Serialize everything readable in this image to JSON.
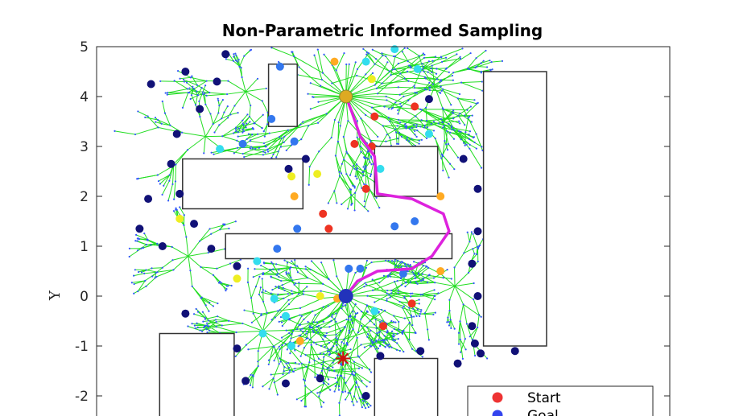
{
  "chart_data": {
    "type": "scatter",
    "title": "Non-Parametric Informed Sampling",
    "xlabel": "",
    "ylabel": "Y",
    "ylim": [
      -2.4,
      5
    ],
    "xlim": [
      0,
      10
    ],
    "yticks": [
      "5",
      "4",
      "3",
      "2",
      "1",
      "0",
      "-1",
      "-2"
    ],
    "yticks_values": [
      5,
      4,
      3,
      2,
      1,
      0,
      -1,
      -2
    ],
    "grid": false,
    "legend_position": "bottom-right",
    "legend": [
      {
        "label": "Start",
        "color": "#ee3333"
      },
      {
        "label": "Goal",
        "color": "#3344ee"
      }
    ],
    "colors": {
      "tree": "#22dd22",
      "tree_nodes": "#3355ff",
      "path": "#dd22dd",
      "obstacle_edge": "#333333",
      "samples_navy": "#111177",
      "samples_red": "#ee3322",
      "samples_orange": "#ffaa22",
      "samples_cyan": "#33ddee",
      "samples_blue": "#3377ee",
      "samples_yellow": "#eeee22",
      "star": "#cc1111"
    },
    "obstacles": [
      {
        "x": [
          3.0,
          3.5
        ],
        "y": [
          3.4,
          4.65
        ]
      },
      {
        "x": [
          1.5,
          3.6
        ],
        "y": [
          1.75,
          2.75
        ]
      },
      {
        "x": [
          2.25,
          6.2
        ],
        "y": [
          0.75,
          1.25
        ]
      },
      {
        "x": [
          4.85,
          5.95
        ],
        "y": [
          2.0,
          3.0
        ]
      },
      {
        "x": [
          6.75,
          7.85
        ],
        "y": [
          -1.0,
          4.5
        ]
      },
      {
        "x": [
          1.1,
          2.4
        ],
        "y": [
          -2.5,
          -0.75
        ]
      },
      {
        "x": [
          4.85,
          5.95
        ],
        "y": [
          -2.5,
          -1.25
        ]
      }
    ],
    "start": {
      "x": 4.35,
      "y": 0.0
    },
    "goal": {
      "x": 4.35,
      "y": 4.0
    },
    "goal_star": {
      "x": 4.3,
      "y": -1.25
    },
    "path": {
      "x": [
        4.35,
        4.55,
        4.9,
        5.5,
        5.85,
        6.15,
        6.05,
        5.5,
        4.9,
        4.85,
        4.6,
        4.45,
        4.35
      ],
      "y": [
        0.0,
        0.3,
        0.5,
        0.55,
        0.8,
        1.3,
        1.65,
        1.95,
        2.05,
        2.8,
        3.2,
        3.7,
        4.0
      ]
    },
    "series": [
      {
        "color": "#111177",
        "x": [
          0.95,
          1.55,
          1.8,
          2.1,
          2.25,
          1.4,
          1.3,
          1.45,
          0.9,
          0.75,
          1.15,
          1.7,
          2.0,
          1.55,
          2.45,
          5.8,
          6.4,
          6.65,
          6.65,
          6.55,
          6.65,
          6.55,
          6.6,
          6.7,
          7.3,
          6.3,
          5.65,
          4.95,
          4.7,
          3.9,
          3.3,
          2.6,
          2.45,
          3.35,
          3.65
        ],
        "y": [
          4.25,
          4.5,
          3.75,
          4.3,
          4.85,
          3.25,
          2.65,
          2.05,
          1.95,
          1.35,
          1.0,
          1.45,
          0.95,
          -0.35,
          -1.05,
          3.95,
          2.75,
          2.15,
          1.3,
          0.65,
          0.0,
          -0.6,
          -0.95,
          -1.15,
          -1.1,
          -1.35,
          -1.1,
          -1.2,
          -2.0,
          -1.65,
          -1.75,
          -1.7,
          0.6,
          2.55,
          2.75
        ]
      },
      {
        "color": "#ee3322",
        "x": [
          4.85,
          4.8,
          5.55,
          4.5,
          4.7,
          4.05,
          3.95,
          5.5,
          5.0
        ],
        "y": [
          3.6,
          3.0,
          3.8,
          3.05,
          2.15,
          1.35,
          1.65,
          -0.15,
          -0.6
        ]
      },
      {
        "color": "#ffaa22",
        "x": [
          4.15,
          3.45,
          6.0,
          6.0,
          3.55,
          4.2
        ],
        "y": [
          4.7,
          2.0,
          2.0,
          0.5,
          -0.9,
          -0.05
        ]
      },
      {
        "color": "#33ddee",
        "x": [
          5.2,
          5.6,
          4.7,
          5.8,
          2.15,
          4.95,
          2.8,
          3.1,
          3.3,
          4.85,
          2.9,
          3.4
        ],
        "y": [
          4.95,
          4.55,
          4.7,
          3.25,
          2.95,
          2.55,
          0.7,
          -0.05,
          -0.4,
          -0.3,
          -0.75,
          -1.0
        ]
      },
      {
        "color": "#3377ee",
        "x": [
          3.2,
          3.05,
          3.45,
          2.55,
          3.5,
          5.2,
          4.4,
          5.55,
          3.15,
          4.6,
          5.35
        ],
        "y": [
          4.6,
          3.55,
          3.1,
          3.05,
          1.35,
          1.4,
          0.55,
          1.5,
          0.95,
          0.55,
          0.45
        ]
      },
      {
        "color": "#eeee22",
        "x": [
          1.45,
          3.4,
          3.85,
          2.45,
          3.9,
          4.8
        ],
        "y": [
          1.55,
          2.4,
          2.45,
          0.35,
          0.0,
          4.35
        ]
      }
    ]
  }
}
